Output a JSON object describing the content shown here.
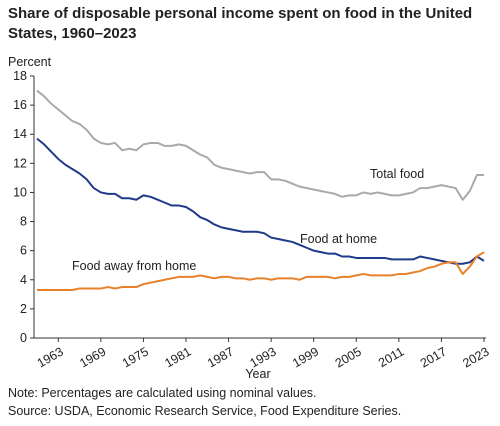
{
  "chart_data": {
    "type": "line",
    "title": "Share of disposable personal income spent on food in the United States, 1960–2023",
    "y_label": "Percent",
    "x_label": "Year",
    "note": "Note: Percentages are calculated using nominal values.",
    "source": "Source: USDA, Economic Research Service, Food Expenditure Series.",
    "x": [
      1960,
      1961,
      1962,
      1963,
      1964,
      1965,
      1966,
      1967,
      1968,
      1969,
      1970,
      1971,
      1972,
      1973,
      1974,
      1975,
      1976,
      1977,
      1978,
      1979,
      1980,
      1981,
      1982,
      1983,
      1984,
      1985,
      1986,
      1987,
      1988,
      1989,
      1990,
      1991,
      1992,
      1993,
      1994,
      1995,
      1996,
      1997,
      1998,
      1999,
      2000,
      2001,
      2002,
      2003,
      2004,
      2005,
      2006,
      2007,
      2008,
      2009,
      2010,
      2011,
      2012,
      2013,
      2014,
      2015,
      2016,
      2017,
      2018,
      2019,
      2020,
      2021,
      2022,
      2023
    ],
    "series": [
      {
        "name": "Total food",
        "color": "#a9a9a9",
        "values": [
          17.0,
          16.6,
          16.1,
          15.7,
          15.3,
          14.9,
          14.7,
          14.3,
          13.7,
          13.4,
          13.3,
          13.4,
          12.9,
          13.0,
          12.9,
          13.3,
          13.4,
          13.4,
          13.2,
          13.2,
          13.3,
          13.2,
          12.9,
          12.6,
          12.4,
          11.9,
          11.7,
          11.6,
          11.5,
          11.4,
          11.3,
          11.4,
          11.4,
          10.9,
          10.9,
          10.8,
          10.6,
          10.4,
          10.3,
          10.2,
          10.1,
          10.0,
          9.9,
          9.7,
          9.8,
          9.8,
          10.0,
          9.9,
          10.0,
          9.9,
          9.8,
          9.8,
          9.9,
          10.0,
          10.3,
          10.3,
          10.4,
          10.5,
          10.4,
          10.3,
          9.5,
          10.1,
          11.2,
          11.2
        ]
      },
      {
        "name": "Food at home",
        "color": "#1f3a8a",
        "values": [
          13.7,
          13.3,
          12.8,
          12.3,
          11.9,
          11.6,
          11.3,
          10.9,
          10.3,
          10.0,
          9.9,
          9.9,
          9.6,
          9.6,
          9.5,
          9.8,
          9.7,
          9.5,
          9.3,
          9.1,
          9.1,
          9.0,
          8.7,
          8.3,
          8.1,
          7.8,
          7.6,
          7.5,
          7.4,
          7.3,
          7.3,
          7.3,
          7.2,
          6.9,
          6.8,
          6.7,
          6.6,
          6.4,
          6.2,
          6.0,
          5.9,
          5.8,
          5.8,
          5.6,
          5.6,
          5.5,
          5.5,
          5.5,
          5.5,
          5.5,
          5.4,
          5.4,
          5.4,
          5.4,
          5.6,
          5.5,
          5.4,
          5.3,
          5.2,
          5.1,
          5.1,
          5.2,
          5.6,
          5.3
        ]
      },
      {
        "name": "Food away from home",
        "color": "#e8822a",
        "values": [
          3.3,
          3.3,
          3.3,
          3.3,
          3.3,
          3.3,
          3.4,
          3.4,
          3.4,
          3.4,
          3.5,
          3.4,
          3.5,
          3.5,
          3.5,
          3.7,
          3.8,
          3.9,
          4.0,
          4.1,
          4.2,
          4.2,
          4.2,
          4.3,
          4.2,
          4.1,
          4.2,
          4.2,
          4.1,
          4.1,
          4.0,
          4.1,
          4.1,
          4.0,
          4.1,
          4.1,
          4.1,
          4.0,
          4.2,
          4.2,
          4.2,
          4.2,
          4.1,
          4.2,
          4.2,
          4.3,
          4.4,
          4.3,
          4.3,
          4.3,
          4.3,
          4.4,
          4.4,
          4.5,
          4.6,
          4.8,
          4.9,
          5.1,
          5.2,
          5.2,
          4.4,
          4.9,
          5.6,
          5.9
        ]
      }
    ],
    "xlim": [
      1960,
      2023
    ],
    "xticks": [
      1963,
      1969,
      1975,
      1981,
      1987,
      1993,
      1999,
      2005,
      2011,
      2017,
      2023
    ],
    "ylim": [
      0,
      18
    ],
    "yticks": [
      0,
      2,
      4,
      6,
      8,
      10,
      12,
      14,
      16,
      18
    ],
    "grid": false
  }
}
